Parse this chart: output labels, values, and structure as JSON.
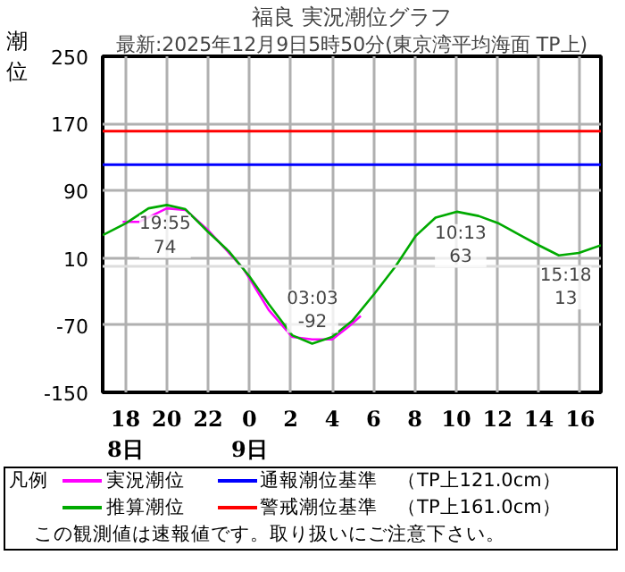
{
  "chart_data": {
    "type": "line",
    "title": "福良 実況潮位グラフ",
    "subtitle": "最新:2025年12月9日5時50分(東京湾平均海面 TP上)",
    "ylabel": "潮位",
    "legend_title": "凡例",
    "xlim": [
      "2025-12-08T16:54",
      "2025-12-09T17:00"
    ],
    "ylim": [
      -150,
      250
    ],
    "xticks": [
      {
        "value": "2025-12-08T18:00",
        "label": "18\n8日"
      },
      {
        "value": "2025-12-08T20:00",
        "label": "20"
      },
      {
        "value": "2025-12-08T22:00",
        "label": "22"
      },
      {
        "value": "2025-12-09T00:00",
        "label": "0\n9日"
      },
      {
        "value": "2025-12-09T02:00",
        "label": "2"
      },
      {
        "value": "2025-12-09T04:00",
        "label": "4"
      },
      {
        "value": "2025-12-09T06:00",
        "label": "6"
      },
      {
        "value": "2025-12-09T08:00",
        "label": "8"
      },
      {
        "value": "2025-12-09T10:00",
        "label": "10"
      },
      {
        "value": "2025-12-09T12:00",
        "label": "12"
      },
      {
        "value": "2025-12-09T14:00",
        "label": "14"
      },
      {
        "value": "2025-12-09T16:00",
        "label": "16"
      }
    ],
    "yticks": [
      -150,
      -70,
      10,
      90,
      170,
      250
    ],
    "grid": true,
    "legend": "bottom",
    "series": [
      {
        "name": "実況潮位",
        "color": "#ff00ff",
        "x": [
          "2025-12-08T17:52",
          "2025-12-08T18:41",
          "2025-12-08T20:00",
          "2025-12-08T20:55",
          "2025-12-08T22:00",
          "2025-12-08T23:41",
          "2025-12-09T00:07",
          "2025-12-09T00:56",
          "2025-12-09T02:04",
          "2025-12-09T03:02",
          "2025-12-09T04:00",
          "2025-12-09T04:47",
          "2025-12-09T05:23"
        ],
        "values": [
          53,
          53,
          69,
          67,
          43,
          -2,
          -19,
          -52,
          -84,
          -87,
          -87,
          -72,
          -59
        ]
      },
      {
        "name": "推算潮位",
        "color": "#00aa00",
        "x": [
          "2025-12-08T16:54",
          "2025-12-08T18:00",
          "2025-12-08T19:07",
          "2025-12-08T20:00",
          "2025-12-08T20:54",
          "2025-12-08T22:00",
          "2025-12-08T23:00",
          "2025-12-09T00:00",
          "2025-12-09T00:56",
          "2025-12-09T02:04",
          "2025-12-09T03:02",
          "2025-12-09T04:00",
          "2025-12-09T04:58",
          "2025-12-09T06:02",
          "2025-12-09T07:04",
          "2025-12-09T08:02",
          "2025-12-09T09:00",
          "2025-12-09T10:02",
          "2025-12-09T11:05",
          "2025-12-09T12:04",
          "2025-12-09T13:02",
          "2025-12-09T14:00",
          "2025-12-09T14:58",
          "2025-12-09T15:56",
          "2025-12-09T17:00"
        ],
        "values": [
          37,
          51,
          69,
          73,
          68,
          41,
          18,
          -12,
          -45,
          -82,
          -92,
          -84,
          -65,
          -33,
          0,
          36,
          58,
          65,
          60,
          51,
          38,
          25,
          13,
          16,
          25
        ]
      }
    ],
    "ref_lines": [
      {
        "axis": "y",
        "value": 121,
        "label": "通報潮位基準　（TP上121.0cm）",
        "color": "#0000ff"
      },
      {
        "axis": "y",
        "value": 161,
        "label": "警戒潮位基準　（TP上161.0cm）",
        "color": "#ff0000"
      },
      {
        "axis": "y",
        "value": 0,
        "color": "#dddddd"
      }
    ],
    "annotations": [
      {
        "text": "19:55\n74",
        "x": "2025-12-08T19:55",
        "y": 74
      },
      {
        "text": "03:03\n-92",
        "x": "2025-12-09T03:03",
        "y": -92
      },
      {
        "text": "10:13\n63",
        "x": "2025-12-09T10:13",
        "y": 63
      },
      {
        "text": "15:18\n13",
        "x": "2025-12-09T15:18",
        "y": 13
      },
      "この観測値は速報値です。取り扱いにご注意下さい。"
    ]
  }
}
